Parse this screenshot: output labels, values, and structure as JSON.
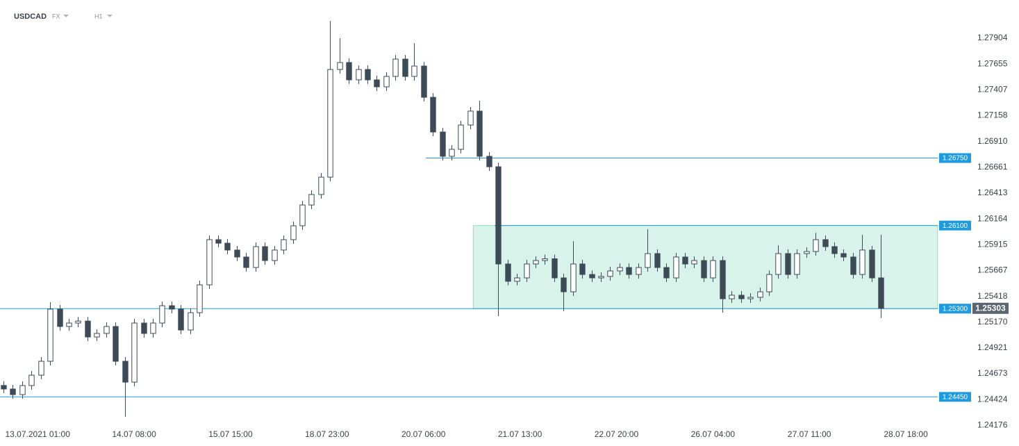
{
  "header": {
    "symbol": "USDCAD",
    "market": "FX",
    "interval": "H1"
  },
  "chart_data": {
    "type": "candlestick",
    "up_color": "#ffffff",
    "down_color": "#3d4a57",
    "outline_color": "#3d4a57",
    "grid": false,
    "x": [
      0,
      3,
      6,
      9,
      12,
      15,
      18,
      21,
      24,
      27,
      30,
      33,
      36,
      39,
      42,
      45,
      48,
      51,
      54,
      57,
      60,
      63,
      66,
      69,
      72,
      75,
      78,
      81,
      84,
      87,
      90,
      93,
      96,
      99,
      102,
      105,
      108,
      111,
      114,
      117,
      120,
      123,
      126,
      129,
      132,
      135,
      138,
      141,
      144,
      147,
      150,
      153,
      156,
      159,
      162,
      165,
      168,
      171,
      174,
      177,
      180,
      183,
      186,
      189,
      192,
      195,
      198,
      201,
      204,
      207,
      210,
      213,
      216,
      219,
      222,
      225,
      228,
      231,
      234,
      237,
      240,
      243,
      246,
      249,
      252,
      255,
      258,
      261,
      264,
      267,
      270,
      273,
      276,
      279,
      282
    ],
    "open": [
      1.2456,
      1.24526,
      1.24472,
      1.24559,
      1.24659,
      1.24793,
      1.25295,
      1.25128,
      1.25161,
      1.2518,
      1.25027,
      1.25061,
      1.25128,
      1.24793,
      1.24592,
      1.25161,
      1.25061,
      1.25161,
      1.25328,
      1.25295,
      1.25094,
      1.25261,
      1.25529,
      1.25964,
      1.2593,
      1.25864,
      1.25797,
      1.25696,
      1.25897,
      1.25763,
      1.25864,
      1.25964,
      1.26098,
      1.26298,
      1.26399,
      1.26566,
      1.27603,
      1.2767,
      1.27503,
      1.27603,
      1.27503,
      1.27436,
      1.27536,
      1.27703,
      1.27536,
      1.27636,
      1.27335,
      1.27001,
      1.26767,
      1.26834,
      1.27068,
      1.27202,
      1.26767,
      1.26666,
      1.2573,
      1.25563,
      1.25596,
      1.2573,
      1.25763,
      1.2578,
      1.25596,
      1.25462,
      1.2573,
      1.25629,
      1.25596,
      1.2561,
      1.25663,
      1.25696,
      1.25629,
      1.25696,
      1.2583,
      1.25696,
      1.25596,
      1.25797,
      1.2573,
      1.25763,
      1.25596,
      1.25763,
      1.25395,
      1.25429,
      1.25395,
      1.25409,
      1.25462,
      1.25629,
      1.2583,
      1.25629,
      1.2583,
      1.2585,
      1.25964,
      1.25897,
      1.2583,
      1.25797,
      1.25629,
      1.25864,
      1.25596
    ],
    "high": [
      1.246,
      1.24566,
      1.24599,
      1.24699,
      1.24833,
      1.25362,
      1.25335,
      1.25201,
      1.2522,
      1.2522,
      1.25101,
      1.25168,
      1.25168,
      1.24833,
      1.25201,
      1.25201,
      1.25201,
      1.25368,
      1.25368,
      1.25335,
      1.25301,
      1.25569,
      1.26004,
      1.26004,
      1.2597,
      1.25904,
      1.25837,
      1.25937,
      1.25937,
      1.25904,
      1.26004,
      1.26138,
      1.26338,
      1.26439,
      1.26606,
      1.28071,
      1.27904,
      1.2771,
      1.27643,
      1.27643,
      1.27543,
      1.27576,
      1.27743,
      1.27743,
      1.27857,
      1.27676,
      1.27375,
      1.27041,
      1.26874,
      1.27108,
      1.27242,
      1.27302,
      1.26807,
      1.26706,
      1.2577,
      1.25636,
      1.2577,
      1.25803,
      1.2582,
      1.2582,
      1.25636,
      1.2595,
      1.2577,
      1.25669,
      1.2565,
      1.25703,
      1.25736,
      1.25736,
      1.25736,
      1.26064,
      1.2587,
      1.25736,
      1.25837,
      1.25837,
      1.25803,
      1.25803,
      1.25803,
      1.25803,
      1.25469,
      1.25469,
      1.25449,
      1.25502,
      1.25669,
      1.2591,
      1.2587,
      1.2587,
      1.2589,
      1.2603,
      1.26004,
      1.25937,
      1.2587,
      1.25837,
      1.26011,
      1.25904,
      1.26011
    ],
    "low": [
      1.24486,
      1.24432,
      1.24432,
      1.24519,
      1.24619,
      1.24753,
      1.25088,
      1.25088,
      1.25121,
      1.24987,
      1.24987,
      1.25021,
      1.24753,
      1.24258,
      1.24552,
      1.25021,
      1.25021,
      1.25121,
      1.25255,
      1.25054,
      1.25054,
      1.25221,
      1.25489,
      1.2589,
      1.25824,
      1.25757,
      1.25656,
      1.25656,
      1.25723,
      1.25723,
      1.25824,
      1.25924,
      1.26058,
      1.26258,
      1.26359,
      1.26526,
      1.27563,
      1.27463,
      1.27463,
      1.27463,
      1.27396,
      1.27396,
      1.27496,
      1.27496,
      1.27496,
      1.27295,
      1.26961,
      1.26727,
      1.26727,
      1.26794,
      1.27028,
      1.26727,
      1.26626,
      1.25228,
      1.25523,
      1.25523,
      1.25556,
      1.2569,
      1.25723,
      1.25556,
      1.25275,
      1.25422,
      1.25589,
      1.25556,
      1.25556,
      1.2557,
      1.25623,
      1.25589,
      1.25589,
      1.25656,
      1.25656,
      1.25556,
      1.25556,
      1.2569,
      1.2569,
      1.25556,
      1.25556,
      1.25261,
      1.25355,
      1.25355,
      1.25355,
      1.25369,
      1.25422,
      1.25589,
      1.25589,
      1.25589,
      1.2579,
      1.2581,
      1.25857,
      1.2579,
      1.25757,
      1.25589,
      1.25589,
      1.25556,
      1.25208
    ],
    "close": [
      1.24526,
      1.24472,
      1.24559,
      1.24659,
      1.24793,
      1.25295,
      1.25128,
      1.25161,
      1.2518,
      1.25027,
      1.25061,
      1.25128,
      1.24793,
      1.24592,
      1.25161,
      1.25061,
      1.25161,
      1.25328,
      1.25295,
      1.25094,
      1.25261,
      1.25529,
      1.25964,
      1.2593,
      1.25864,
      1.25797,
      1.25696,
      1.25897,
      1.25763,
      1.25864,
      1.25964,
      1.26098,
      1.26298,
      1.26399,
      1.26566,
      1.27603,
      1.2767,
      1.27503,
      1.27603,
      1.27503,
      1.27436,
      1.27536,
      1.27703,
      1.27536,
      1.27636,
      1.27335,
      1.27001,
      1.26767,
      1.26834,
      1.27068,
      1.27202,
      1.26767,
      1.26666,
      1.2573,
      1.25563,
      1.25596,
      1.2573,
      1.25763,
      1.2578,
      1.25596,
      1.25462,
      1.2573,
      1.25629,
      1.25596,
      1.2561,
      1.25663,
      1.25696,
      1.25629,
      1.25696,
      1.2583,
      1.25696,
      1.25596,
      1.25797,
      1.2573,
      1.25763,
      1.25596,
      1.25763,
      1.25395,
      1.25429,
      1.25395,
      1.25409,
      1.25462,
      1.25629,
      1.2583,
      1.25629,
      1.2583,
      1.2585,
      1.25964,
      1.25897,
      1.2583,
      1.25797,
      1.25629,
      1.25864,
      1.25596,
      1.25303
    ],
    "xlim": [
      -1.1,
      310.3
    ],
    "xticks": [
      {
        "value": 11,
        "label": "13.07.2021  01:00"
      },
      {
        "value": 42,
        "label": "14.07  08:00"
      },
      {
        "value": 73,
        "label": "15.07  15:00"
      },
      {
        "value": 104,
        "label": "18.07  23:00"
      },
      {
        "value": 135,
        "label": "20.07  06:00"
      },
      {
        "value": 166,
        "label": "21.07  13:00"
      },
      {
        "value": 197,
        "label": "22.07  20:00"
      },
      {
        "value": 228,
        "label": "26.07  04:00"
      },
      {
        "value": 259,
        "label": "27.07  11:00"
      },
      {
        "value": 290,
        "label": "28.07  18:00"
      }
    ],
    "ylim": [
      1.23977,
      1.28272
    ],
    "yticks": [
      1.27904,
      1.27655,
      1.27407,
      1.27158,
      {
        "value": 1.2691,
        "label": "1.26910"
      },
      1.26661,
      1.26413,
      1.26164,
      1.25915,
      1.25667,
      1.25418,
      {
        "value": 1.2517,
        "label": "1.25170"
      },
      1.24921,
      1.24673,
      1.24424,
      1.24176
    ],
    "levels": [
      {
        "value": 1.2675,
        "label": "1.26750",
        "from": 135.7
      },
      {
        "value": 1.261,
        "label": "1.26100",
        "from": 157.8
      },
      {
        "value": 1.253,
        "label": "1.25300",
        "from": -1.1
      },
      {
        "value": 1.2445,
        "label": "1.24450",
        "from": -1.1
      }
    ],
    "level_color": "#1e9be0",
    "zone": {
      "x": [
        151,
        300.2
      ],
      "y": [
        1.253,
        1.261
      ],
      "color": "#d8f3ea"
    },
    "last_price": 1.25303
  }
}
